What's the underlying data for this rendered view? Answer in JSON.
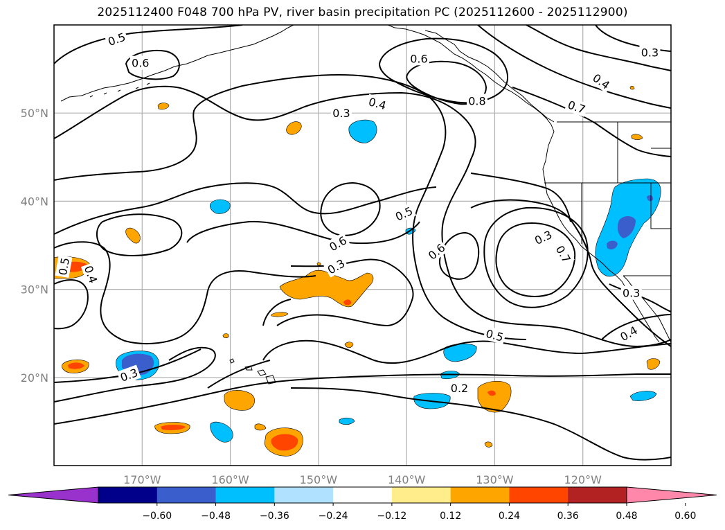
{
  "title": "2025112400 F048 700 hPa PV, river basin precipitation PC (2025112600 - 2025112900)",
  "map": {
    "lon_range": [
      -180,
      -110
    ],
    "lat_range": [
      10,
      60
    ],
    "lon_ticks": [
      {
        "lon": -170,
        "label": "170°W"
      },
      {
        "lon": -160,
        "label": "160°W"
      },
      {
        "lon": -150,
        "label": "150°W"
      },
      {
        "lon": -140,
        "label": "140°W"
      },
      {
        "lon": -130,
        "label": "130°W"
      },
      {
        "lon": -120,
        "label": "120°W"
      }
    ],
    "lat_ticks": [
      {
        "lat": 20,
        "label": "20°N"
      },
      {
        "lat": 30,
        "label": "30°N"
      },
      {
        "lat": 40,
        "label": "40°N"
      },
      {
        "lat": 50,
        "label": "50°N"
      }
    ],
    "contour_labels": [
      {
        "text": "0.5",
        "lon": -172.9,
        "lat": 58.4,
        "angle": -20
      },
      {
        "text": "0.6",
        "lon": -170.2,
        "lat": 55.7,
        "angle": 0
      },
      {
        "text": "0.3",
        "lon": -147.4,
        "lat": 50.0,
        "angle": 0
      },
      {
        "text": "0.4",
        "lon": -143.3,
        "lat": 51.1,
        "angle": 15
      },
      {
        "text": "0.6",
        "lon": -138.6,
        "lat": 56.2,
        "angle": 0
      },
      {
        "text": "0.8",
        "lon": -132.0,
        "lat": 51.4,
        "angle": 0
      },
      {
        "text": "0.7",
        "lon": -120.7,
        "lat": 50.7,
        "angle": 20
      },
      {
        "text": "0.4",
        "lon": -117.9,
        "lat": 53.6,
        "angle": 35
      },
      {
        "text": "0.3",
        "lon": -112.4,
        "lat": 56.9,
        "angle": 0
      },
      {
        "text": "0.5",
        "lon": -140.3,
        "lat": 38.6,
        "angle": -25
      },
      {
        "text": "0.6",
        "lon": -147.8,
        "lat": 35.2,
        "angle": -30
      },
      {
        "text": "0.6",
        "lon": -136.6,
        "lat": 34.3,
        "angle": -40
      },
      {
        "text": "0.3",
        "lon": -124.5,
        "lat": 35.9,
        "angle": -25
      },
      {
        "text": "0.7",
        "lon": -122.2,
        "lat": 34.0,
        "angle": 60
      },
      {
        "text": "0.3",
        "lon": -148.0,
        "lat": 32.6,
        "angle": -30
      },
      {
        "text": "0.5",
        "lon": -178.9,
        "lat": 32.6,
        "angle": -80
      },
      {
        "text": "0.4",
        "lon": -175.8,
        "lat": 31.7,
        "angle": 70
      },
      {
        "text": "0.5",
        "lon": -130.0,
        "lat": 24.8,
        "angle": 15
      },
      {
        "text": "0.3",
        "lon": -171.5,
        "lat": 20.3,
        "angle": -20
      },
      {
        "text": "0.2",
        "lon": -134.0,
        "lat": 18.8,
        "angle": 0
      },
      {
        "text": "0.3",
        "lon": -114.5,
        "lat": 29.6,
        "angle": 0
      },
      {
        "text": "0.4",
        "lon": -114.8,
        "lat": 25.0,
        "angle": -30
      }
    ]
  },
  "colorbar": {
    "ticks": [
      "−0.60",
      "−0.48",
      "−0.36",
      "−0.24",
      "−0.12",
      "0.12",
      "0.24",
      "0.36",
      "0.48",
      "0.60"
    ],
    "colors": [
      "#9932cc",
      "#00008b",
      "#3a5fcd",
      "#00bfff",
      "#b0e2ff",
      "#ffffff",
      "#ffec8b",
      "#ffa500",
      "#ff4500",
      "#b22222",
      "#ff88aa"
    ]
  },
  "colors": {
    "orange": "#ffa500",
    "orange_red": "#ff4500",
    "deep_sky_blue": "#00bfff",
    "royal_blue": "#3a5fcd",
    "grid": "#b0b0b0"
  }
}
